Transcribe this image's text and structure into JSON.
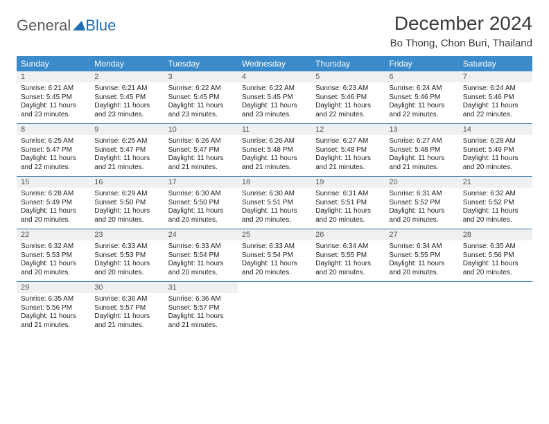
{
  "logo": {
    "textA": "General",
    "textB": "Blue"
  },
  "title": "December 2024",
  "location": "Bo Thong, Chon Buri, Thailand",
  "colors": {
    "header_bg": "#3b8bca",
    "header_text": "#ffffff",
    "daynum_bg": "#eef0f1",
    "row_border": "#2f6fa3",
    "logo_gray": "#5a5a5a",
    "logo_blue": "#1f6fb2"
  },
  "weekdays": [
    "Sunday",
    "Monday",
    "Tuesday",
    "Wednesday",
    "Thursday",
    "Friday",
    "Saturday"
  ],
  "weeks": [
    [
      {
        "n": "1",
        "sr": "6:21 AM",
        "ss": "5:45 PM",
        "dl": "11 hours and 23 minutes."
      },
      {
        "n": "2",
        "sr": "6:21 AM",
        "ss": "5:45 PM",
        "dl": "11 hours and 23 minutes."
      },
      {
        "n": "3",
        "sr": "6:22 AM",
        "ss": "5:45 PM",
        "dl": "11 hours and 23 minutes."
      },
      {
        "n": "4",
        "sr": "6:22 AM",
        "ss": "5:45 PM",
        "dl": "11 hours and 23 minutes."
      },
      {
        "n": "5",
        "sr": "6:23 AM",
        "ss": "5:46 PM",
        "dl": "11 hours and 22 minutes."
      },
      {
        "n": "6",
        "sr": "6:24 AM",
        "ss": "5:46 PM",
        "dl": "11 hours and 22 minutes."
      },
      {
        "n": "7",
        "sr": "6:24 AM",
        "ss": "5:46 PM",
        "dl": "11 hours and 22 minutes."
      }
    ],
    [
      {
        "n": "8",
        "sr": "6:25 AM",
        "ss": "5:47 PM",
        "dl": "11 hours and 22 minutes."
      },
      {
        "n": "9",
        "sr": "6:25 AM",
        "ss": "5:47 PM",
        "dl": "11 hours and 21 minutes."
      },
      {
        "n": "10",
        "sr": "6:26 AM",
        "ss": "5:47 PM",
        "dl": "11 hours and 21 minutes."
      },
      {
        "n": "11",
        "sr": "6:26 AM",
        "ss": "5:48 PM",
        "dl": "11 hours and 21 minutes."
      },
      {
        "n": "12",
        "sr": "6:27 AM",
        "ss": "5:48 PM",
        "dl": "11 hours and 21 minutes."
      },
      {
        "n": "13",
        "sr": "6:27 AM",
        "ss": "5:48 PM",
        "dl": "11 hours and 21 minutes."
      },
      {
        "n": "14",
        "sr": "6:28 AM",
        "ss": "5:49 PM",
        "dl": "11 hours and 20 minutes."
      }
    ],
    [
      {
        "n": "15",
        "sr": "6:28 AM",
        "ss": "5:49 PM",
        "dl": "11 hours and 20 minutes."
      },
      {
        "n": "16",
        "sr": "6:29 AM",
        "ss": "5:50 PM",
        "dl": "11 hours and 20 minutes."
      },
      {
        "n": "17",
        "sr": "6:30 AM",
        "ss": "5:50 PM",
        "dl": "11 hours and 20 minutes."
      },
      {
        "n": "18",
        "sr": "6:30 AM",
        "ss": "5:51 PM",
        "dl": "11 hours and 20 minutes."
      },
      {
        "n": "19",
        "sr": "6:31 AM",
        "ss": "5:51 PM",
        "dl": "11 hours and 20 minutes."
      },
      {
        "n": "20",
        "sr": "6:31 AM",
        "ss": "5:52 PM",
        "dl": "11 hours and 20 minutes."
      },
      {
        "n": "21",
        "sr": "6:32 AM",
        "ss": "5:52 PM",
        "dl": "11 hours and 20 minutes."
      }
    ],
    [
      {
        "n": "22",
        "sr": "6:32 AM",
        "ss": "5:53 PM",
        "dl": "11 hours and 20 minutes."
      },
      {
        "n": "23",
        "sr": "6:33 AM",
        "ss": "5:53 PM",
        "dl": "11 hours and 20 minutes."
      },
      {
        "n": "24",
        "sr": "6:33 AM",
        "ss": "5:54 PM",
        "dl": "11 hours and 20 minutes."
      },
      {
        "n": "25",
        "sr": "6:33 AM",
        "ss": "5:54 PM",
        "dl": "11 hours and 20 minutes."
      },
      {
        "n": "26",
        "sr": "6:34 AM",
        "ss": "5:55 PM",
        "dl": "11 hours and 20 minutes."
      },
      {
        "n": "27",
        "sr": "6:34 AM",
        "ss": "5:55 PM",
        "dl": "11 hours and 20 minutes."
      },
      {
        "n": "28",
        "sr": "6:35 AM",
        "ss": "5:56 PM",
        "dl": "11 hours and 20 minutes."
      }
    ],
    [
      {
        "n": "29",
        "sr": "6:35 AM",
        "ss": "5:56 PM",
        "dl": "11 hours and 21 minutes."
      },
      {
        "n": "30",
        "sr": "6:36 AM",
        "ss": "5:57 PM",
        "dl": "11 hours and 21 minutes."
      },
      {
        "n": "31",
        "sr": "6:36 AM",
        "ss": "5:57 PM",
        "dl": "11 hours and 21 minutes."
      },
      null,
      null,
      null,
      null
    ]
  ],
  "labels": {
    "sunrise": "Sunrise: ",
    "sunset": "Sunset: ",
    "daylight": "Daylight: "
  }
}
